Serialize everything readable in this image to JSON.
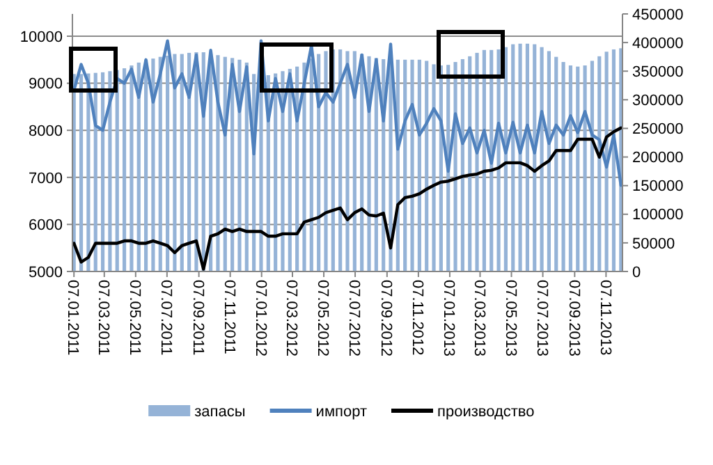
{
  "chart_data": {
    "type": "bar",
    "grid": "y",
    "legend": "bottom",
    "x": [
      "2011-01-07",
      "2011-01-21",
      "2011-02-04",
      "2011-02-18",
      "2011-03-04",
      "2011-03-18",
      "2011-04-01",
      "2011-04-15",
      "2011-04-29",
      "2011-05-13",
      "2011-05-27",
      "2011-06-10",
      "2011-06-24",
      "2011-07-08",
      "2011-07-22",
      "2011-08-05",
      "2011-08-19",
      "2011-09-02",
      "2011-09-16",
      "2011-09-30",
      "2011-10-14",
      "2011-10-28",
      "2011-11-11",
      "2011-11-25",
      "2011-12-09",
      "2011-12-23",
      "2012-01-06",
      "2012-01-20",
      "2012-02-03",
      "2012-02-17",
      "2012-03-02",
      "2012-03-16",
      "2012-03-30",
      "2012-04-13",
      "2012-04-27",
      "2012-05-11",
      "2012-05-25",
      "2012-06-08",
      "2012-06-22",
      "2012-07-06",
      "2012-07-20",
      "2012-08-03",
      "2012-08-17",
      "2012-08-31",
      "2012-09-14",
      "2012-09-28",
      "2012-10-12",
      "2012-10-26",
      "2012-11-09",
      "2012-11-23",
      "2012-12-07",
      "2012-12-21",
      "2013-01-04",
      "2013-01-18",
      "2013-02-01",
      "2013-02-15",
      "2013-03-01",
      "2013-03-15",
      "2013-03-29",
      "2013-04-12",
      "2013-04-26",
      "2013-05-10",
      "2013-05-24",
      "2013-06-07",
      "2013-06-21",
      "2013-07-05",
      "2013-07-19",
      "2013-08-02",
      "2013-08-16",
      "2013-08-30",
      "2013-09-13",
      "2013-09-27",
      "2013-10-11",
      "2013-10-25",
      "2013-11-08",
      "2013-11-22",
      "2013-12-06"
    ],
    "xlim": [
      "2011-01-04",
      "2013-12-09"
    ],
    "xticks": [
      {
        "value": "2011-01-07",
        "label": "07.01.2011"
      },
      {
        "value": "2011-03-07",
        "label": "07.03.2011"
      },
      {
        "value": "2011-05-07",
        "label": "07.05.2011"
      },
      {
        "value": "2011-07-07",
        "label": "07.07.2011"
      },
      {
        "value": "2011-09-07",
        "label": "07.09.2011"
      },
      {
        "value": "2011-11-07",
        "label": "07.11.2011"
      },
      {
        "value": "2012-01-07",
        "label": "07.01.2012"
      },
      {
        "value": "2012-03-07",
        "label": "07.03.2012"
      },
      {
        "value": "2012-05-07",
        "label": "07.05.2012"
      },
      {
        "value": "2012-07-07",
        "label": "07.07.2012"
      },
      {
        "value": "2012-09-07",
        "label": "07.09.2012"
      },
      {
        "value": "2012-11-07",
        "label": "07.11.2012"
      },
      {
        "value": "2013-01-07",
        "label": "07.01.2013"
      },
      {
        "value": "2013-03-07",
        "label": "07.03.2013"
      },
      {
        "value": "2013-05-07",
        "label": "07.05.2013"
      },
      {
        "value": "2013-07-07",
        "label": "07.07.2013"
      },
      {
        "value": "2013-09-07",
        "label": "07.09.2013"
      },
      {
        "value": "2013-11-07",
        "label": "07.11.2013"
      }
    ],
    "ylim": [
      5000,
      10000
    ],
    "yticks": [
      5000,
      6000,
      7000,
      8000,
      9000,
      10000
    ],
    "y2lim": [
      0,
      450000
    ],
    "y2ticks": [
      0,
      50000,
      100000,
      150000,
      200000,
      250000,
      300000,
      350000,
      400000,
      450000
    ],
    "series": [
      {
        "name": "запасы",
        "axis": "y2",
        "color": "#95b3d7",
        "values": [
          345000,
          345000,
          346000,
          347000,
          348000,
          350000,
          352000,
          355000,
          360000,
          365000,
          370000,
          372000,
          375000,
          377000,
          380000,
          380000,
          382000,
          383000,
          383000,
          380000,
          378000,
          375000,
          373000,
          370000,
          365000,
          345000,
          328000,
          343000,
          346000,
          350000,
          354000,
          358000,
          365000,
          372000,
          380000,
          385000,
          388000,
          388000,
          385000,
          385000,
          380000,
          376000,
          373000,
          371000,
          370000,
          370000,
          370000,
          370000,
          370000,
          368000,
          362000,
          360000,
          361000,
          366000,
          371000,
          376000,
          382000,
          387000,
          387000,
          388000,
          392000,
          397000,
          398000,
          398000,
          397000,
          392000,
          385000,
          375000,
          366000,
          360000,
          358000,
          360000,
          368000,
          376000,
          384000,
          388000,
          390000
        ]
      },
      {
        "name": "импорт",
        "type": "line",
        "color": "#4f81bd",
        "values": [
          8850,
          9400,
          9000,
          8100,
          8000,
          8600,
          9100,
          9000,
          9300,
          8700,
          9500,
          8600,
          9200,
          9900,
          8900,
          9200,
          8700,
          9600,
          8300,
          9700,
          8600,
          7900,
          9400,
          8400,
          9350,
          7500,
          9900,
          8200,
          9100,
          8400,
          9200,
          8200,
          9000,
          9800,
          8500,
          8800,
          8600,
          9000,
          9400,
          8700,
          9600,
          8400,
          9500,
          8200,
          9830,
          7600,
          8200,
          8550,
          7900,
          8150,
          8460,
          8200,
          7130,
          8350,
          7720,
          8050,
          7520,
          8000,
          7300,
          8150,
          7520,
          8170,
          7520,
          8110,
          7520,
          8400,
          7720,
          8110,
          7900,
          8310,
          7950,
          8400,
          7900,
          7800,
          7220,
          7900,
          6830
        ]
      },
      {
        "name": "производство",
        "type": "line",
        "color": "#000000",
        "values": [
          5600,
          5200,
          5300,
          5600,
          5600,
          5600,
          5600,
          5650,
          5650,
          5600,
          5600,
          5650,
          5600,
          5550,
          5400,
          5550,
          5600,
          5650,
          5050,
          5750,
          5800,
          5900,
          5850,
          5900,
          5850,
          5850,
          5850,
          5750,
          5750,
          5800,
          5800,
          5800,
          6050,
          6100,
          6150,
          6250,
          6300,
          6350,
          6100,
          6250,
          6330,
          6200,
          6180,
          6240,
          5500,
          6420,
          6570,
          6600,
          6650,
          6750,
          6830,
          6900,
          6920,
          6970,
          7020,
          7050,
          7070,
          7130,
          7150,
          7200,
          7310,
          7310,
          7310,
          7250,
          7130,
          7250,
          7350,
          7570,
          7570,
          7570,
          7810,
          7810,
          7810,
          7430,
          7860,
          7970,
          8050
        ]
      }
    ]
  }
}
